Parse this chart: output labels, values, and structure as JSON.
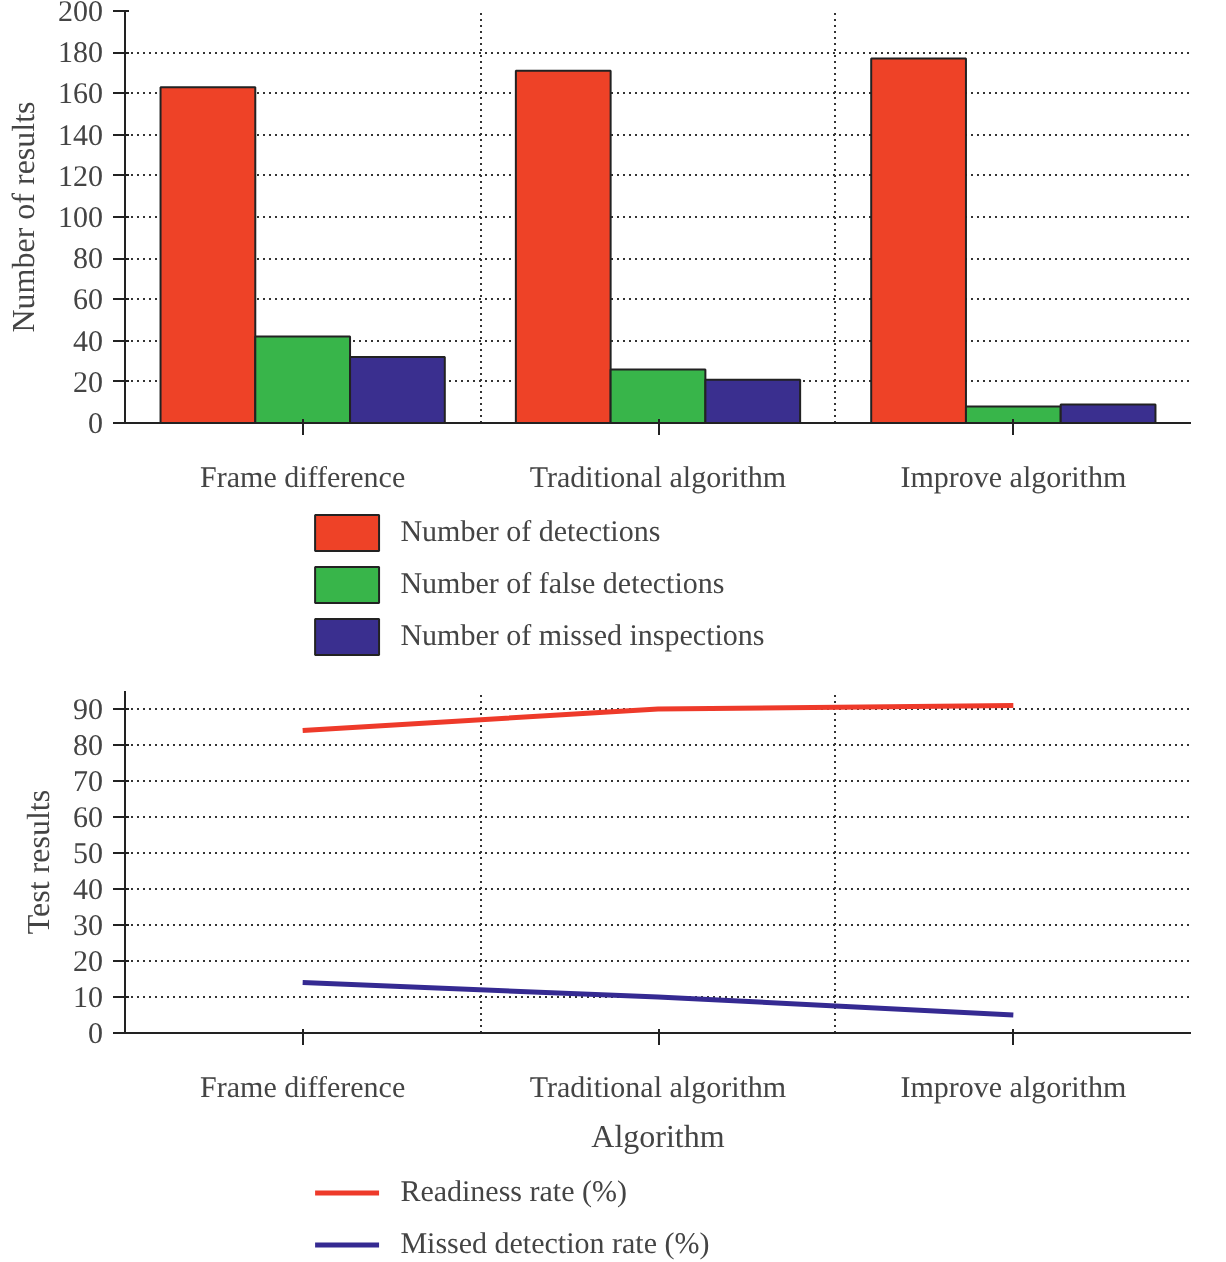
{
  "chart_data": [
    {
      "type": "bar",
      "ylabel": "Number of results",
      "categories": [
        "Frame difference",
        "Traditional algorithm",
        "Improve algorithm"
      ],
      "series": [
        {
          "name": "Number of detections",
          "color": "#ee4227",
          "values": [
            163,
            171,
            177
          ]
        },
        {
          "name": "Number of false detections",
          "color": "#38b54a",
          "values": [
            42,
            26,
            8
          ]
        },
        {
          "name": "Number of missed inspections",
          "color": "#3a2f8f",
          "values": [
            32,
            21,
            9
          ]
        }
      ],
      "ylim": [
        0,
        200
      ],
      "yticks": [
        0,
        20,
        40,
        60,
        80,
        100,
        120,
        140,
        160,
        180,
        200
      ],
      "grid": true,
      "legend": "bottom"
    },
    {
      "type": "line",
      "xlabel": "Algorithm",
      "ylabel": "Test results",
      "categories": [
        "Frame difference",
        "Traditional algorithm",
        "Improve algorithm"
      ],
      "series": [
        {
          "name": "Readiness rate (%)",
          "color": "#ee3a2a",
          "values": [
            84,
            90,
            91
          ]
        },
        {
          "name": "Missed detection rate (%)",
          "color": "#352a92",
          "values": [
            14,
            10,
            5
          ]
        }
      ],
      "ylim": [
        0,
        95
      ],
      "yticks": [
        0,
        10,
        20,
        30,
        40,
        50,
        60,
        70,
        80,
        90
      ],
      "grid": true,
      "legend": "bottom",
      "marker": "none",
      "line_style": "solid"
    }
  ]
}
